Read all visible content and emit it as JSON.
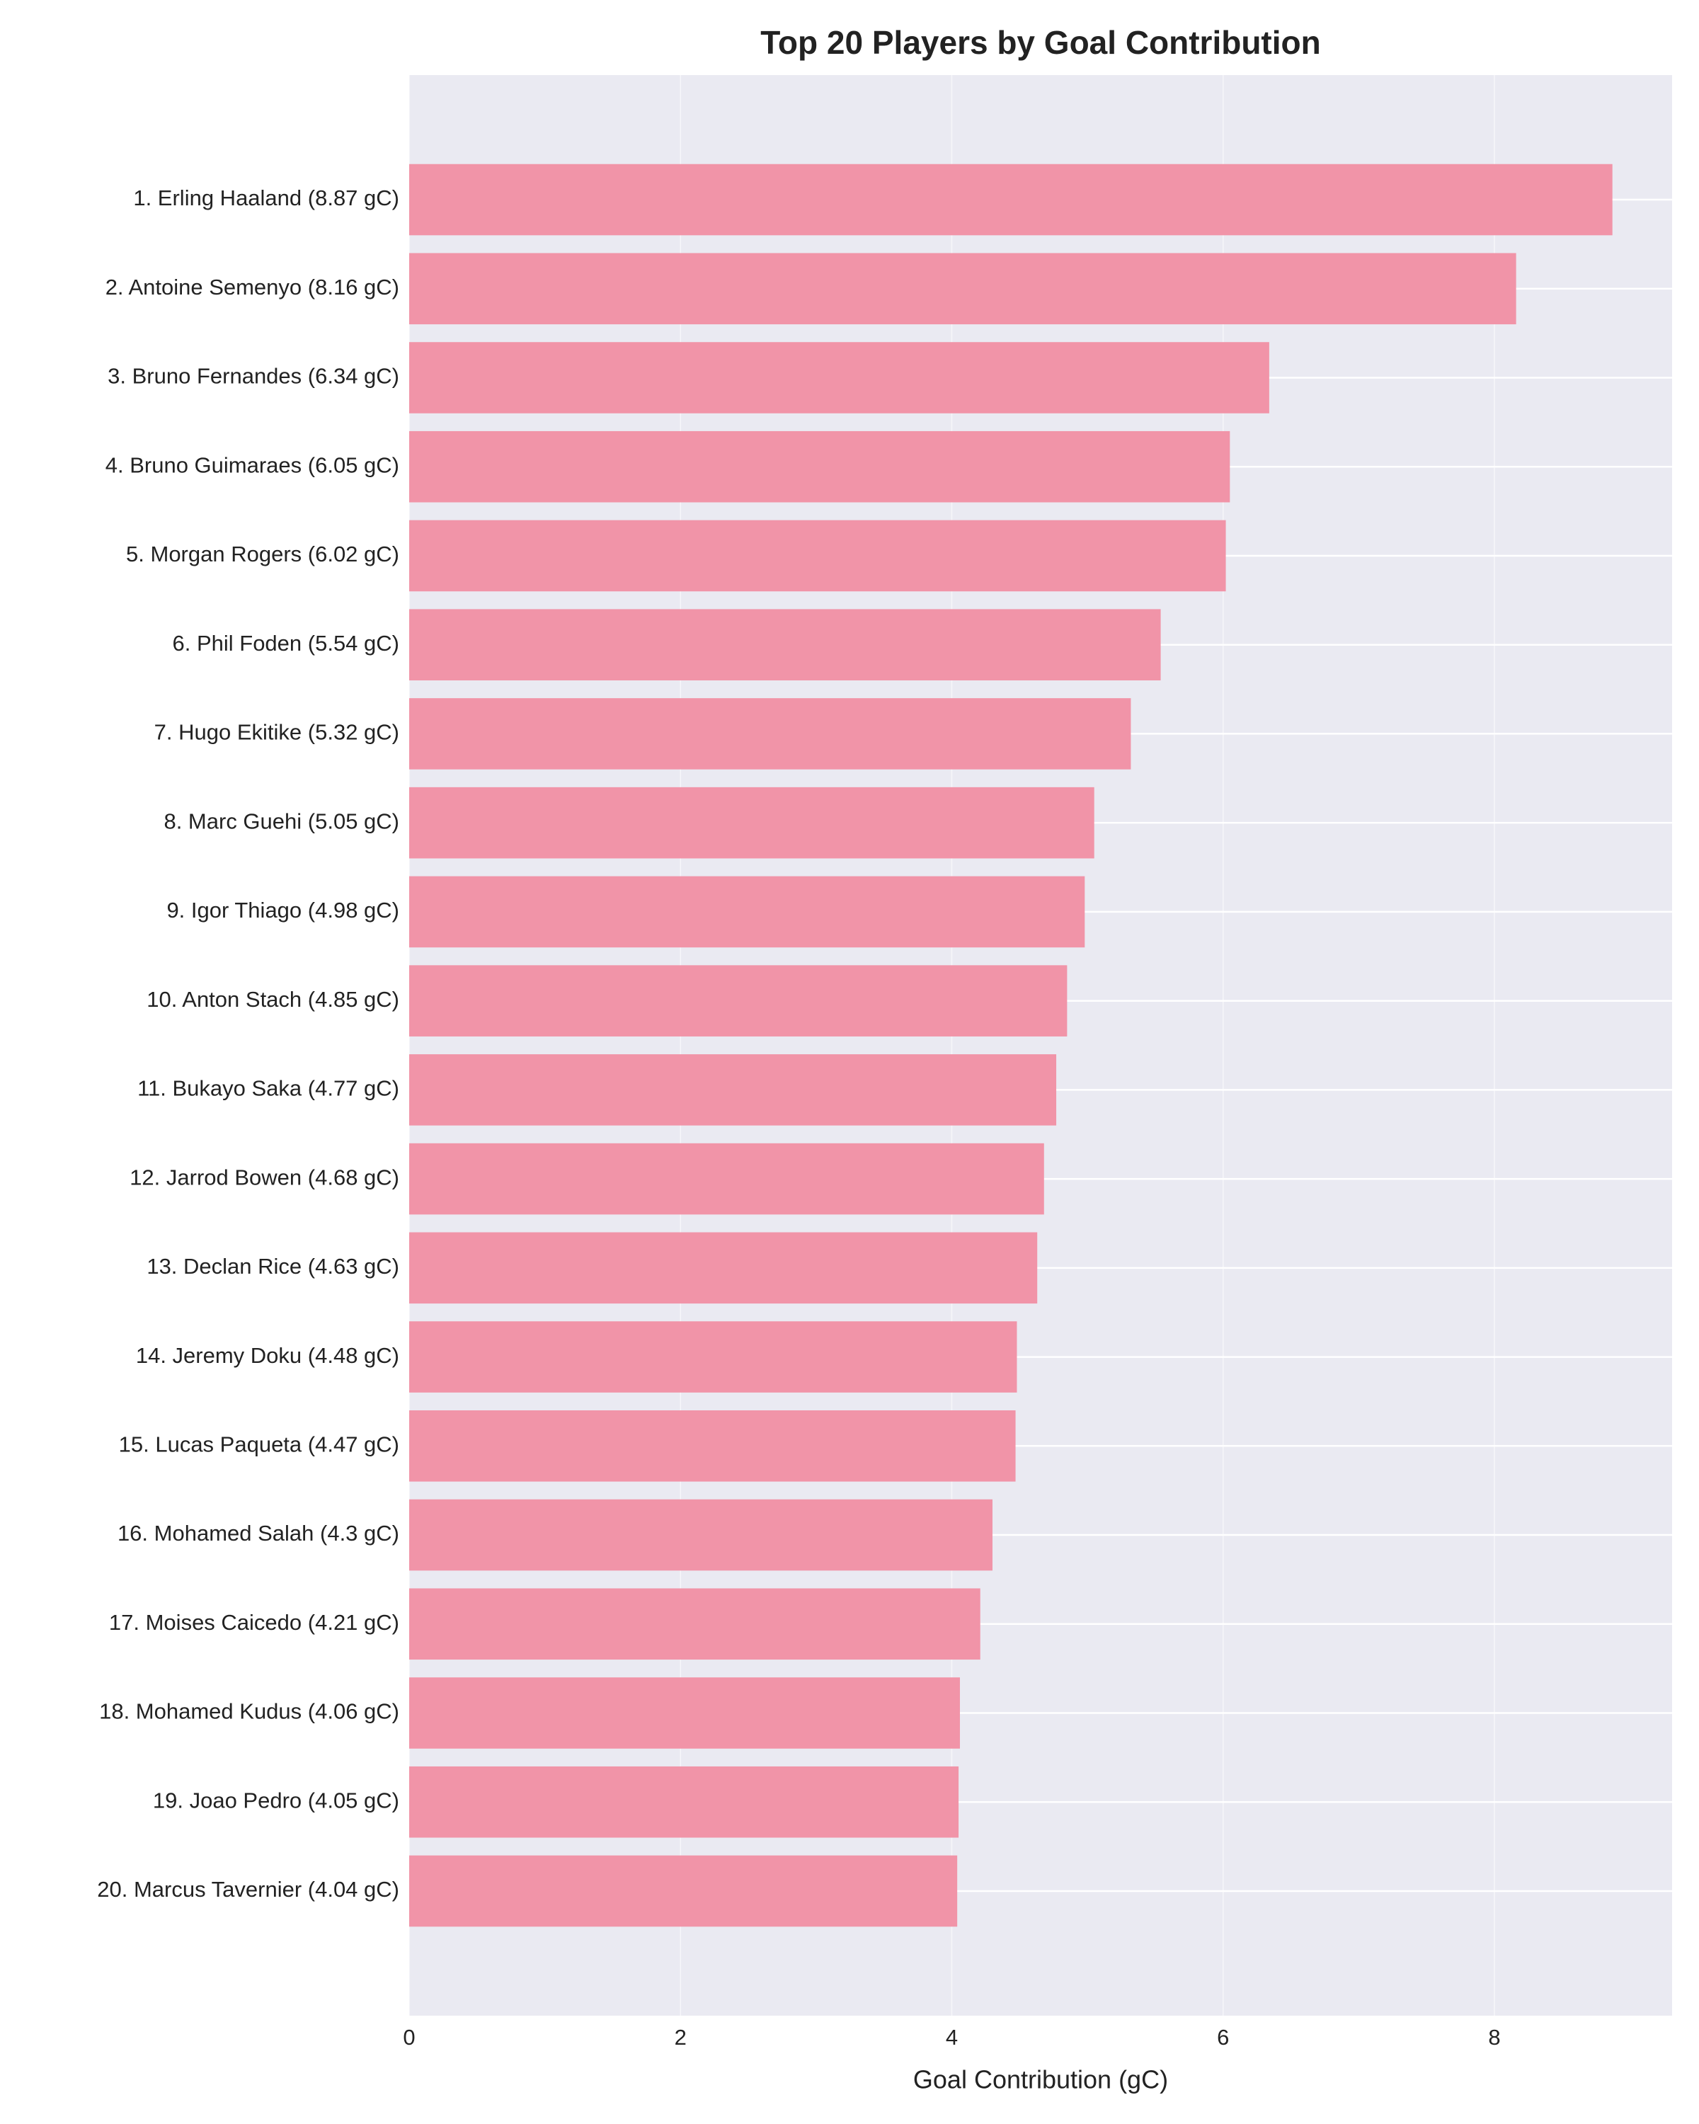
{
  "chart_data": {
    "type": "barh",
    "title": "Top 20 Players by Goal Contribution",
    "xlabel": "Goal Contribution (gC)",
    "categories": [
      "1. Erling Haaland (8.87 gC)",
      "2. Antoine Semenyo (8.16 gC)",
      "3. Bruno Fernandes (6.34 gC)",
      "4. Bruno Guimaraes (6.05 gC)",
      "5. Morgan Rogers (6.02 gC)",
      "6. Phil Foden (5.54 gC)",
      "7. Hugo Ekitike (5.32 gC)",
      "8. Marc Guehi (5.05 gC)",
      "9. Igor Thiago (4.98 gC)",
      "10. Anton Stach (4.85 gC)",
      "11. Bukayo Saka (4.77 gC)",
      "12. Jarrod Bowen (4.68 gC)",
      "13. Declan Rice (4.63 gC)",
      "14. Jeremy Doku (4.48 gC)",
      "15. Lucas Paqueta (4.47 gC)",
      "16. Mohamed Salah (4.3 gC)",
      "17. Moises Caicedo (4.21 gC)",
      "18. Mohamed Kudus (4.06 gC)",
      "19. Joao Pedro (4.05 gC)",
      "20. Marcus Tavernier (4.04 gC)"
    ],
    "values": [
      8.87,
      8.16,
      6.34,
      6.05,
      6.02,
      5.54,
      5.32,
      5.05,
      4.98,
      4.85,
      4.77,
      4.68,
      4.63,
      4.48,
      4.47,
      4.3,
      4.21,
      4.06,
      4.05,
      4.04
    ],
    "color": "#f194a8",
    "xlim": [
      0,
      9.31
    ],
    "xticks": [
      0,
      2,
      4,
      6,
      8
    ],
    "grid": true
  }
}
